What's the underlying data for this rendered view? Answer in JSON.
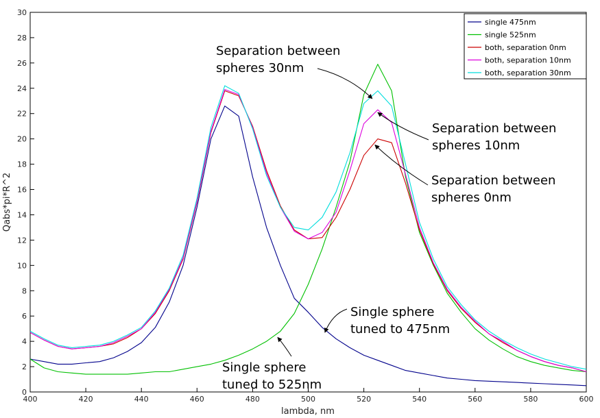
{
  "chart_data": {
    "type": "line",
    "title": "",
    "xlabel": "lambda, nm",
    "ylabel": "Qabs*pi*R^2",
    "xlim": [
      400,
      600
    ],
    "ylim": [
      0,
      30
    ],
    "x_ticks": [
      400,
      420,
      440,
      460,
      480,
      500,
      520,
      540,
      560,
      580,
      600
    ],
    "y_ticks": [
      0,
      2,
      4,
      6,
      8,
      10,
      12,
      14,
      16,
      18,
      20,
      22,
      24,
      26,
      28,
      30
    ],
    "grid": false,
    "legend_position": "top-right",
    "x": [
      400,
      405,
      410,
      415,
      420,
      425,
      430,
      435,
      440,
      445,
      450,
      455,
      460,
      465,
      470,
      475,
      480,
      485,
      490,
      495,
      500,
      505,
      510,
      515,
      520,
      525,
      530,
      535,
      540,
      545,
      550,
      555,
      560,
      565,
      570,
      575,
      580,
      585,
      590,
      595,
      600
    ],
    "series": [
      {
        "name": "single 475nm",
        "color": "#00008b",
        "values": [
          2.6,
          2.4,
          2.2,
          2.2,
          2.3,
          2.4,
          2.7,
          3.2,
          3.9,
          5.1,
          7.1,
          10.0,
          14.6,
          20.0,
          22.6,
          21.8,
          17.0,
          13.0,
          10.0,
          7.4,
          6.3,
          5.1,
          4.2,
          3.5,
          2.9,
          2.5,
          2.1,
          1.7,
          1.5,
          1.3,
          1.1,
          1.0,
          0.9,
          0.85,
          0.8,
          0.75,
          0.7,
          0.65,
          0.6,
          0.55,
          0.5
        ]
      },
      {
        "name": "single 525nm",
        "color": "#00c000",
        "values": [
          2.6,
          1.9,
          1.6,
          1.5,
          1.4,
          1.4,
          1.4,
          1.4,
          1.5,
          1.6,
          1.6,
          1.8,
          2.0,
          2.2,
          2.5,
          2.9,
          3.4,
          4.0,
          4.8,
          6.2,
          8.5,
          11.3,
          14.6,
          18.2,
          23.5,
          25.9,
          23.8,
          17.0,
          12.6,
          10.0,
          7.8,
          6.3,
          5.0,
          4.1,
          3.4,
          2.8,
          2.4,
          2.1,
          1.9,
          1.7,
          1.6
        ]
      },
      {
        "name": "both, separation 0nm",
        "color": "#cc0000",
        "values": [
          4.7,
          4.1,
          3.6,
          3.4,
          3.5,
          3.6,
          3.8,
          4.3,
          5.0,
          6.2,
          8.0,
          10.5,
          15.0,
          20.5,
          23.8,
          23.4,
          21.0,
          17.5,
          14.7,
          12.8,
          12.1,
          12.2,
          13.8,
          16.0,
          18.7,
          20.0,
          19.7,
          16.5,
          12.8,
          10.1,
          8.0,
          6.6,
          5.5,
          4.6,
          3.9,
          3.3,
          2.8,
          2.4,
          2.1,
          1.9,
          1.6
        ]
      },
      {
        "name": "both, separation 10nm",
        "color": "#dd00dd",
        "values": [
          4.7,
          4.1,
          3.6,
          3.4,
          3.5,
          3.6,
          3.9,
          4.4,
          5.0,
          6.3,
          8.1,
          10.6,
          15.1,
          20.6,
          23.9,
          23.5,
          20.9,
          17.3,
          14.6,
          12.7,
          12.1,
          12.6,
          14.2,
          17.5,
          21.2,
          22.3,
          21.3,
          17.2,
          13.0,
          10.2,
          8.1,
          6.7,
          5.6,
          4.6,
          4.0,
          3.3,
          2.8,
          2.4,
          2.1,
          1.9,
          1.6
        ]
      },
      {
        "name": "both, separation 30nm",
        "color": "#00dddd",
        "values": [
          4.8,
          4.2,
          3.7,
          3.5,
          3.6,
          3.7,
          4.0,
          4.5,
          5.1,
          6.4,
          8.2,
          10.8,
          15.3,
          20.9,
          24.2,
          23.6,
          20.8,
          17.1,
          14.6,
          13.0,
          12.8,
          13.8,
          15.8,
          18.9,
          22.8,
          23.8,
          22.6,
          18.0,
          13.4,
          10.5,
          8.3,
          6.9,
          5.7,
          4.8,
          4.1,
          3.5,
          3.0,
          2.6,
          2.3,
          2.0,
          1.8
        ]
      }
    ],
    "annotations": [
      {
        "lines": [
          "Separation between",
          "spheres 30nm"
        ],
        "points_to_series": "both, separation 30nm",
        "points_to_x": 523
      },
      {
        "lines": [
          "Separation between",
          "spheres 10nm"
        ],
        "points_to_series": "both, separation 10nm",
        "points_to_x": 525
      },
      {
        "lines": [
          "Separation between",
          "spheres 0nm"
        ],
        "points_to_series": "both, separation 0nm",
        "points_to_x": 524
      },
      {
        "lines": [
          "Single sphere",
          "tuned to 475nm"
        ],
        "points_to_series": "single 475nm",
        "points_to_x": 506
      },
      {
        "lines": [
          "Single sphere",
          "tuned to 525nm"
        ],
        "points_to_series": "single 525nm",
        "points_to_x": 489
      }
    ]
  }
}
